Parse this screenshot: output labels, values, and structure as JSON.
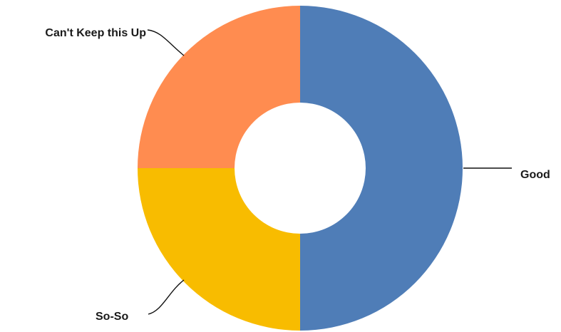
{
  "chart_data": {
    "type": "pie",
    "style": "donut",
    "title": "",
    "slices": [
      {
        "label": "Good",
        "value": 50,
        "color": "#4f7db7"
      },
      {
        "label": "So-So",
        "value": 25,
        "color": "#f8bc00"
      },
      {
        "label": "Can't Keep this Up",
        "value": 25,
        "color": "#ff8c50"
      }
    ],
    "start": "12 o'clock",
    "direction": "clockwise",
    "legend": "none",
    "labels": "outside with leader lines"
  }
}
